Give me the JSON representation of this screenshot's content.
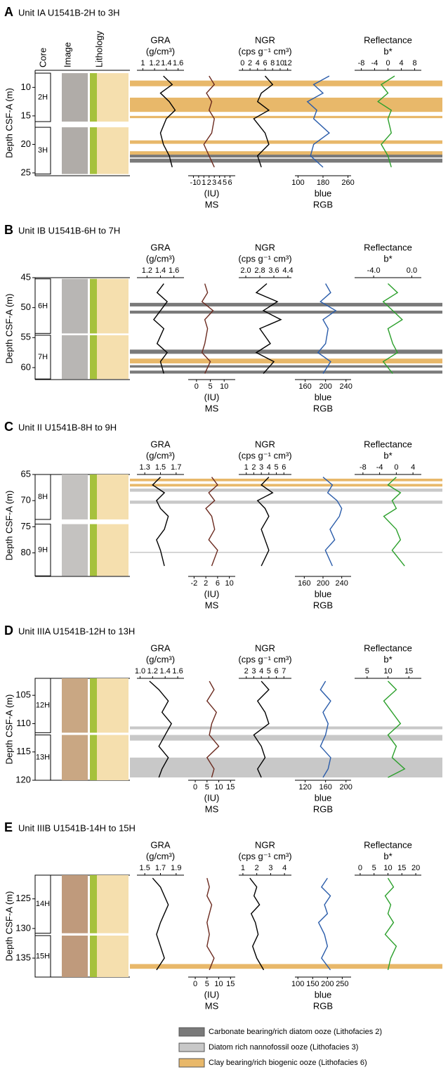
{
  "chart_data": [
    {
      "type": "well-log",
      "label": "A",
      "title": "Unit IA U1541B-2H to 3H",
      "ylabel": "Depth CSF-A (m)",
      "column_headers": [
        "Core",
        "Image",
        "Lithology"
      ],
      "ylim": [
        7,
        25.5
      ],
      "yticks": [
        10,
        15,
        20,
        25
      ],
      "cores": [
        {
          "label": "2H",
          "from": 7.5,
          "to": 16
        },
        {
          "label": "3H",
          "from": 17,
          "to": 25.2
        }
      ],
      "bands": [
        {
          "from": 8.8,
          "to": 9.8,
          "facies": 2
        },
        {
          "from": 11.8,
          "to": 14.3,
          "facies": 2
        },
        {
          "from": 15,
          "to": 15.4,
          "facies": 2
        },
        {
          "from": 19.3,
          "to": 19.9,
          "facies": 2
        },
        {
          "from": 21.2,
          "to": 21.8,
          "facies": 2
        },
        {
          "from": 21.8,
          "to": 22.3,
          "facies": 0
        },
        {
          "from": 22.5,
          "to": 23.2,
          "facies": 0
        }
      ],
      "depths": [
        8,
        9.5,
        11,
        12.5,
        14,
        15.5,
        18,
        20,
        22,
        24
      ],
      "tracks": [
        {
          "name": "GRA",
          "unit": "(g/cm³)",
          "axis_side": "top",
          "color": "#000000",
          "xlim": [
            0.9,
            1.7
          ],
          "xticks": [
            1,
            1.2,
            1.4,
            1.6
          ],
          "values": [
            1.35,
            1.5,
            1.3,
            1.45,
            1.55,
            1.4,
            1.3,
            1.35,
            1.45,
            1.5
          ]
        },
        {
          "name": "MS",
          "unit": "(IU)",
          "axis_side": "bottom",
          "color": "#6b2a1f",
          "xlim": [
            -2,
            7
          ],
          "xticks": [
            -1,
            0,
            1,
            2,
            3,
            4,
            5,
            6
          ],
          "values": [
            2,
            3,
            1.5,
            2.5,
            2,
            3,
            2.5,
            1,
            2,
            3
          ]
        },
        {
          "name": "NGR",
          "unit": "(cps g⁻¹ cm³)",
          "axis_side": "top",
          "color": "#000000",
          "xlim": [
            -1,
            13
          ],
          "xticks": [
            0,
            2,
            4,
            6,
            8,
            10,
            12
          ],
          "values": [
            6,
            8,
            5,
            4,
            7,
            3,
            6,
            7,
            4,
            5
          ]
        },
        {
          "name": "RGB",
          "unit": "blue",
          "axis_side": "bottom",
          "color": "#2a5caa",
          "xlim": [
            90,
            270
          ],
          "xticks": [
            100,
            180,
            260
          ],
          "values": [
            200,
            150,
            180,
            130,
            160,
            150,
            200,
            150,
            140,
            180
          ]
        },
        {
          "name": "Reflectance",
          "unit": "b*",
          "axis_side": "top",
          "color": "#2ca02c",
          "xlim": [
            -10,
            10
          ],
          "xticks": [
            -8,
            -4,
            0,
            4,
            8
          ],
          "values": [
            2,
            -2,
            0,
            -3,
            1,
            0,
            1,
            -2,
            0,
            1
          ]
        }
      ]
    },
    {
      "type": "well-log",
      "label": "B",
      "title": "Unit IB U1541B-6H to 7H",
      "ylabel": "Depth CSF-A (m)",
      "ylim": [
        45,
        62
      ],
      "yticks": [
        45,
        50,
        55,
        60
      ],
      "cores": [
        {
          "label": "6H",
          "from": 45.2,
          "to": 54.3
        },
        {
          "label": "7H",
          "from": 54.6,
          "to": 61.9
        }
      ],
      "bands": [
        {
          "from": 49.2,
          "to": 49.8,
          "facies": 0
        },
        {
          "from": 50.5,
          "to": 51,
          "facies": 0
        },
        {
          "from": 57,
          "to": 57.7,
          "facies": 0
        },
        {
          "from": 58.5,
          "to": 59.3,
          "facies": 2
        },
        {
          "from": 59.6,
          "to": 60,
          "facies": 0
        },
        {
          "from": 60.5,
          "to": 61,
          "facies": 0
        }
      ],
      "depths": [
        46,
        47.5,
        49,
        50.5,
        52,
        53.5,
        56,
        57.5,
        59,
        61
      ],
      "tracks": [
        {
          "name": "GRA",
          "unit": "(g/cm³)",
          "axis_side": "top",
          "color": "#000000",
          "xlim": [
            1.05,
            1.75
          ],
          "xticks": [
            1.2,
            1.4,
            1.6
          ],
          "values": [
            1.45,
            1.35,
            1.5,
            1.4,
            1.3,
            1.45,
            1.35,
            1.5,
            1.4,
            1.45
          ]
        },
        {
          "name": "MS",
          "unit": "(IU)",
          "axis_side": "bottom",
          "color": "#6b2a1f",
          "xlim": [
            -3,
            14
          ],
          "xticks": [
            0,
            5,
            10
          ],
          "values": [
            3,
            4,
            2,
            6,
            3,
            4,
            3,
            2,
            5,
            3
          ]
        },
        {
          "name": "NGR",
          "unit": "(cps g⁻¹ cm³)",
          "axis_side": "top",
          "color": "#000000",
          "xlim": [
            1.6,
            4.6
          ],
          "xticks": [
            {
              "value": 2,
              "label": "2.0"
            },
            2.8,
            3.6,
            4.4
          ],
          "values": [
            3.2,
            2.6,
            3.8,
            3.0,
            4.0,
            2.8,
            3.4,
            2.6,
            3.6,
            3.0
          ]
        },
        {
          "name": "RGB",
          "unit": "blue",
          "axis_side": "bottom",
          "color": "#2a5caa",
          "xlim": [
            140,
            250
          ],
          "xticks": [
            160,
            200,
            240
          ],
          "values": [
            200,
            210,
            190,
            220,
            195,
            205,
            200,
            185,
            210,
            195
          ]
        },
        {
          "name": "Reflectance",
          "unit": "b*",
          "axis_side": "top",
          "color": "#2ca02c",
          "xlim": [
            -6,
            1
          ],
          "xticks": [
            {
              "value": -4,
              "label": "-4.0"
            },
            {
              "value": 0,
              "label": "0.0"
            }
          ],
          "values": [
            -2.5,
            -1.5,
            -3,
            -2,
            -1,
            -2.5,
            -2,
            -1.5,
            -3,
            -2
          ]
        }
      ]
    },
    {
      "type": "well-log",
      "label": "C",
      "title": "Unit II U1541B-8H to 9H",
      "ylabel": "Depth CSF-A (m)",
      "ylim": [
        65,
        84.5
      ],
      "yticks": [
        65,
        70,
        75,
        80
      ],
      "cores": [
        {
          "label": "8H",
          "from": 65,
          "to": 73.6
        },
        {
          "label": "9H",
          "from": 74.5,
          "to": 84.4
        }
      ],
      "bands": [
        {
          "from": 65.8,
          "to": 66.3,
          "facies": 2
        },
        {
          "from": 66.8,
          "to": 67.3,
          "facies": 2
        },
        {
          "from": 67.7,
          "to": 68.3,
          "facies": 1
        },
        {
          "from": 70,
          "to": 70.6,
          "facies": 1
        },
        {
          "from": 79.8,
          "to": 80,
          "facies": 1
        }
      ],
      "depths": [
        65.5,
        67,
        68.5,
        70,
        71.5,
        73,
        75.5,
        77.5,
        79.5,
        82.5
      ],
      "tracks": [
        {
          "name": "GRA",
          "unit": "(g/cm³)",
          "axis_side": "top",
          "color": "#000000",
          "xlim": [
            1.2,
            1.8
          ],
          "xticks": [
            1.3,
            1.5,
            1.7
          ],
          "values": [
            1.5,
            1.4,
            1.55,
            1.45,
            1.5,
            1.6,
            1.55,
            1.45,
            1.5,
            1.55
          ]
        },
        {
          "name": "MS",
          "unit": "(IU)",
          "axis_side": "bottom",
          "color": "#6b2a1f",
          "xlim": [
            -4,
            12
          ],
          "xticks": [
            -2,
            2,
            6,
            10
          ],
          "values": [
            4,
            6,
            3,
            5,
            2,
            4,
            5,
            3,
            6,
            4
          ]
        },
        {
          "name": "NGR",
          "unit": "(cps g⁻¹ cm³)",
          "axis_side": "top",
          "color": "#000000",
          "xlim": [
            0,
            7
          ],
          "xticks": [
            1,
            2,
            3,
            4,
            5,
            6
          ],
          "values": [
            4,
            3,
            4.5,
            2.5,
            3.5,
            4,
            3,
            3.5,
            4,
            3
          ]
        },
        {
          "name": "RGB",
          "unit": "blue",
          "axis_side": "bottom",
          "color": "#2a5caa",
          "xlim": [
            140,
            260
          ],
          "xticks": [
            160,
            200,
            240
          ],
          "values": [
            200,
            220,
            210,
            230,
            240,
            235,
            215,
            225,
            205,
            220
          ]
        },
        {
          "name": "Reflectance",
          "unit": "b*",
          "axis_side": "top",
          "color": "#2ca02c",
          "xlim": [
            -10,
            6
          ],
          "xticks": [
            -8,
            -4,
            0,
            4
          ],
          "values": [
            0,
            -2,
            1,
            -1,
            0,
            -3,
            0,
            1,
            -1,
            2
          ]
        }
      ]
    },
    {
      "type": "well-log",
      "label": "D",
      "title": "Unit IIIA U1541B-12H to 13H",
      "ylabel": "Depth CSF-A (m)",
      "ylim": [
        102,
        120
      ],
      "yticks": [
        105,
        110,
        115,
        120
      ],
      "cores": [
        {
          "label": "12H",
          "from": 102,
          "to": 111.6
        },
        {
          "label": "13H",
          "from": 112,
          "to": 120
        }
      ],
      "bands": [
        {
          "from": 110.5,
          "to": 111,
          "facies": 1
        },
        {
          "from": 112,
          "to": 113,
          "facies": 1
        },
        {
          "from": 116,
          "to": 119.5,
          "facies": 1
        }
      ],
      "depths": [
        102.5,
        104,
        106,
        108,
        110,
        112,
        114,
        116,
        118,
        119.5
      ],
      "tracks": [
        {
          "name": "GRA",
          "unit": "(g/cm³)",
          "axis_side": "top",
          "color": "#000000",
          "xlim": [
            0.95,
            1.7
          ],
          "xticks": [
            {
              "value": 1,
              "label": "1.0"
            },
            1.2,
            1.4,
            1.6
          ],
          "values": [
            1.15,
            1.3,
            1.45,
            1.35,
            1.5,
            1.4,
            1.3,
            1.45,
            1.35,
            1.3
          ]
        },
        {
          "name": "MS",
          "unit": "(IU)",
          "axis_side": "bottom",
          "color": "#6b2a1f",
          "xlim": [
            -3,
            17
          ],
          "xticks": [
            0,
            5,
            10,
            15
          ],
          "values": [
            6,
            8,
            5,
            9,
            7,
            6,
            10,
            5,
            8,
            7
          ]
        },
        {
          "name": "NGR",
          "unit": "(cps g⁻¹ cm³)",
          "axis_side": "top",
          "color": "#000000",
          "xlim": [
            1,
            8
          ],
          "xticks": [
            2,
            3,
            4,
            5,
            6,
            7
          ],
          "values": [
            4,
            5,
            3.5,
            4.5,
            5,
            3,
            4,
            4.5,
            3.5,
            4
          ]
        },
        {
          "name": "RGB",
          "unit": "blue",
          "axis_side": "bottom",
          "color": "#2a5caa",
          "xlim": [
            100,
            210
          ],
          "xticks": [
            120,
            160,
            200
          ],
          "values": [
            160,
            150,
            170,
            155,
            165,
            160,
            150,
            170,
            165,
            155
          ]
        },
        {
          "name": "Reflectance",
          "unit": "b*",
          "axis_side": "top",
          "color": "#2ca02c",
          "xlim": [
            2,
            18
          ],
          "xticks": [
            5,
            10,
            15
          ],
          "values": [
            10,
            12,
            9,
            11,
            13,
            10,
            12,
            11,
            14,
            10
          ]
        }
      ]
    },
    {
      "type": "well-log",
      "label": "E",
      "title": "Unit IIIB U1541B-14H to 15H",
      "ylabel": "Depth CSF-A (m)",
      "ylim": [
        121,
        138.2
      ],
      "yticks": [
        125,
        130,
        135
      ],
      "cores": [
        {
          "label": "14H",
          "from": 121,
          "to": 130.8
        },
        {
          "label": "15H",
          "from": 131.2,
          "to": 138.2
        }
      ],
      "bands": [
        {
          "from": 136,
          "to": 136.8,
          "facies": 2
        }
      ],
      "depths": [
        121.5,
        123,
        124.5,
        126,
        127.5,
        129,
        131,
        133,
        135,
        137
      ],
      "tracks": [
        {
          "name": "GRA",
          "unit": "(g/cm³)",
          "axis_side": "top",
          "color": "#000000",
          "xlim": [
            1.4,
            2.0
          ],
          "xticks": [
            1.5,
            1.7,
            1.9
          ],
          "values": [
            1.6,
            1.7,
            1.75,
            1.8,
            1.75,
            1.7,
            1.65,
            1.7,
            1.75,
            1.65
          ]
        },
        {
          "name": "MS",
          "unit": "(IU)",
          "axis_side": "bottom",
          "color": "#6b2a1f",
          "xlim": [
            -3,
            17
          ],
          "xticks": [
            0,
            5,
            10,
            15
          ],
          "values": [
            5,
            6,
            5,
            7,
            6,
            5,
            6,
            5,
            8,
            6
          ]
        },
        {
          "name": "NGR",
          "unit": "(cps g⁻¹ cm³)",
          "axis_side": "top",
          "color": "#000000",
          "xlim": [
            0.7,
            4.5
          ],
          "xticks": [
            1,
            2,
            3,
            4
          ],
          "values": [
            1.5,
            2,
            1.8,
            2.2,
            1.6,
            1.9,
            2.1,
            1.7,
            2,
            2.5
          ]
        },
        {
          "name": "RGB",
          "unit": "blue",
          "axis_side": "bottom",
          "color": "#2a5caa",
          "xlim": [
            90,
            280
          ],
          "xticks": [
            100,
            150,
            200,
            250
          ],
          "values": [
            200,
            180,
            210,
            190,
            200,
            170,
            190,
            200,
            180,
            210
          ]
        },
        {
          "name": "Reflectance",
          "unit": "b*",
          "axis_side": "top",
          "color": "#2ca02c",
          "xlim": [
            -2,
            22
          ],
          "xticks": [
            0,
            5,
            10,
            15,
            20
          ],
          "values": [
            10,
            12,
            9,
            11,
            10,
            12,
            9,
            13,
            11,
            10
          ]
        }
      ]
    }
  ],
  "legend": [
    {
      "label": "Carbonate bearing/rich diatom ooze (Lithofacies 2)",
      "color": "#7a7a7a"
    },
    {
      "label": "Diatom rich nannofossil ooze (Lithofacies 3)",
      "color": "#c8c8c8"
    },
    {
      "label": "Clay bearing/rich biogenic ooze (Lithofacies 6)",
      "color": "#e8b86a"
    }
  ]
}
